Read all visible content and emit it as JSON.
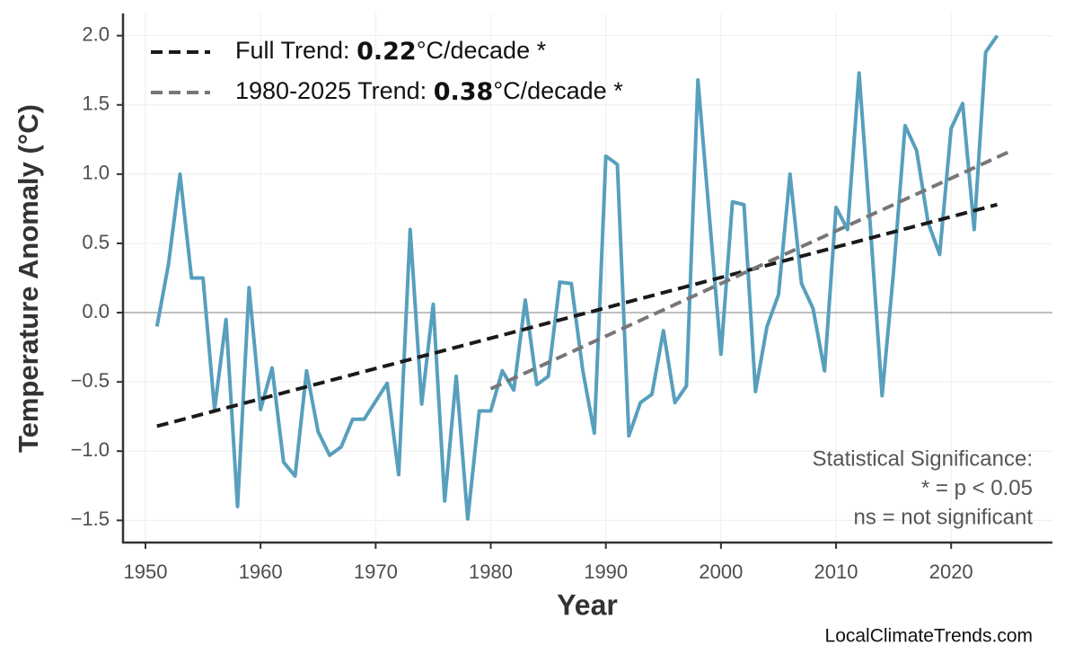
{
  "chart_data": {
    "type": "line",
    "x_label": "Year",
    "y_label": "Temperature Anomaly (°C)",
    "x": [
      1951,
      1952,
      1953,
      1954,
      1955,
      1956,
      1957,
      1958,
      1959,
      1960,
      1961,
      1962,
      1963,
      1964,
      1965,
      1966,
      1967,
      1968,
      1969,
      1970,
      1971,
      1972,
      1973,
      1974,
      1975,
      1976,
      1977,
      1978,
      1979,
      1980,
      1981,
      1982,
      1983,
      1984,
      1985,
      1986,
      1987,
      1988,
      1989,
      1990,
      1991,
      1992,
      1993,
      1994,
      1995,
      1996,
      1997,
      1998,
      1999,
      2000,
      2001,
      2002,
      2003,
      2004,
      2005,
      2006,
      2007,
      2008,
      2009,
      2010,
      2011,
      2012,
      2013,
      2014,
      2015,
      2016,
      2017,
      2018,
      2019,
      2020,
      2021,
      2022,
      2023,
      2024
    ],
    "values": [
      -0.1,
      0.35,
      1.0,
      0.25,
      0.25,
      -0.7,
      -0.05,
      -1.4,
      0.18,
      -0.7,
      -0.4,
      -1.08,
      -1.18,
      -0.42,
      -0.86,
      -1.03,
      -0.97,
      -0.77,
      -0.77,
      -0.64,
      -0.51,
      -1.17,
      0.6,
      -0.66,
      0.06,
      -1.36,
      -0.46,
      -1.49,
      -0.71,
      -0.71,
      -0.42,
      -0.56,
      0.09,
      -0.52,
      -0.46,
      0.22,
      0.21,
      -0.42,
      -0.87,
      1.13,
      1.07,
      -0.89,
      -0.65,
      -0.59,
      -0.13,
      -0.65,
      -0.53,
      1.68,
      0.69,
      -0.3,
      0.8,
      0.78,
      -0.57,
      -0.1,
      0.13,
      1.0,
      0.21,
      0.03,
      -0.42,
      0.76,
      0.6,
      1.73,
      0.6,
      -0.6,
      0.3,
      1.35,
      1.17,
      0.65,
      0.42,
      1.33,
      1.51,
      0.6,
      1.88,
      2.0
    ],
    "color": "#579fbd",
    "trends": [
      {
        "name": "Full Trend:",
        "trend": 0.22,
        "unit": "°C/decade",
        "significance": "*",
        "color": "#1a1a1a",
        "x": [
          1951,
          2024
        ],
        "values": [
          -0.82,
          0.78
        ]
      },
      {
        "name": "1980-2025 Trend:",
        "trend": 0.38,
        "unit": "°C/decade",
        "significance": "*",
        "color": "#777777",
        "x": [
          1980,
          2025
        ],
        "values": [
          -0.55,
          1.16
        ]
      }
    ],
    "reference_line": 0,
    "xlim": [
      1948.05,
      2028.8
    ],
    "ylim": [
      -1.66,
      2.16
    ],
    "xticks": [
      1950,
      1960,
      1970,
      1980,
      1990,
      2000,
      2010,
      2020
    ],
    "yticks": [
      {
        "value": -1.5,
        "label": "−1.5"
      },
      {
        "value": -1,
        "label": "−1.0"
      },
      {
        "value": -0.5,
        "label": "−0.5"
      },
      {
        "value": 0,
        "label": "0.0"
      },
      0.5,
      {
        "value": 1,
        "label": "1.0"
      },
      1.5,
      {
        "value": 2,
        "label": "2.0"
      }
    ],
    "grid": true,
    "legend": "upper left",
    "annotation": [
      "Statistical Significance:",
      "* = p < 0.05",
      "ns = not significant"
    ],
    "source": "LocalClimateTrends.com"
  }
}
